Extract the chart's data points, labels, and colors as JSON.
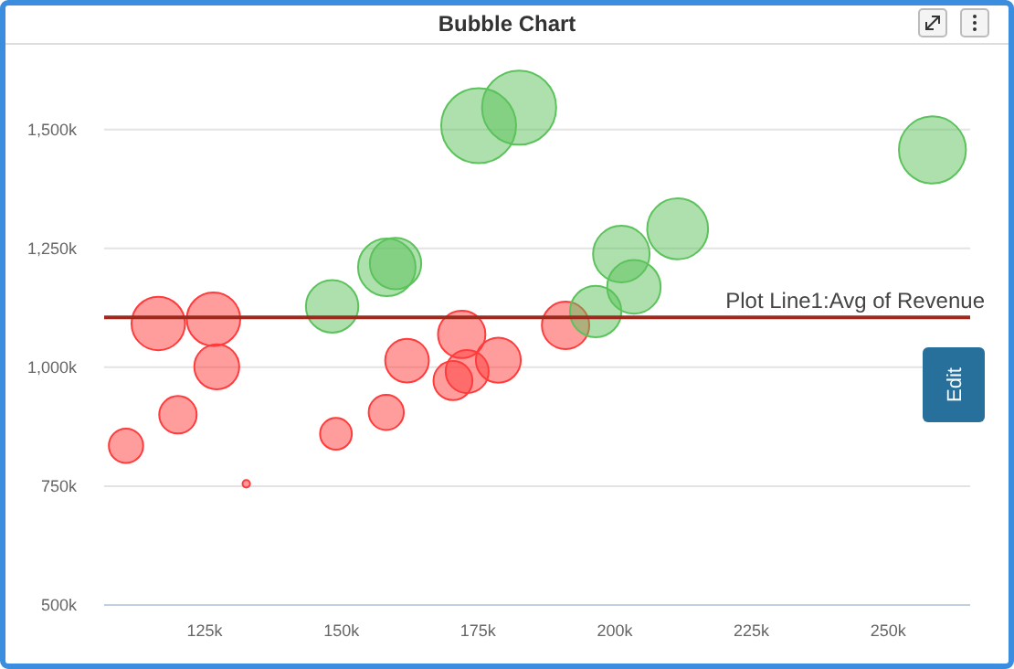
{
  "chart_data": {
    "type": "bubble",
    "title": "Bubble Chart",
    "xlim": [
      106600,
      265000
    ],
    "xticks": [
      {
        "value": 125000,
        "label": "125k"
      },
      {
        "value": 150000,
        "label": "150k"
      },
      {
        "value": 175000,
        "label": "175k"
      },
      {
        "value": 200000,
        "label": "200k"
      },
      {
        "value": 225000,
        "label": "225k"
      },
      {
        "value": 250000,
        "label": "250k"
      }
    ],
    "ylim": [
      500000,
      1680000
    ],
    "yticks": [
      {
        "value": 500000,
        "label": "500k"
      },
      {
        "value": 750000,
        "label": "750k"
      },
      {
        "value": 1000000,
        "label": "1,000k"
      },
      {
        "value": 1250000,
        "label": "1,250k"
      },
      {
        "value": 1500000,
        "label": "1,500k"
      }
    ],
    "grid": "y",
    "series": [
      {
        "color": "#ff3b3b",
        "x": [
          110600,
          120100,
          127200,
          116500,
          126600,
          132600,
          149000,
          158200,
          162000,
          170400,
          172000,
          173000,
          178700,
          191000
        ],
        "values": [
          835000,
          900000,
          1001000,
          1092000,
          1101000,
          755000,
          860000,
          905000,
          1014000,
          972000,
          1069000,
          991000,
          1015000,
          1088000
        ],
        "sizes": [
          0.21,
          0.25,
          0.36,
          0.51,
          0.51,
          0.01,
          0.18,
          0.22,
          0.34,
          0.27,
          0.4,
          0.33,
          0.36,
          0.4
        ]
      },
      {
        "color": "#5cc25c",
        "x": [
          148300,
          158300,
          159900,
          175100,
          182500,
          196500,
          201200,
          203500,
          211500,
          258100
        ],
        "values": [
          1128000,
          1210000,
          1218000,
          1508000,
          1546000,
          1117000,
          1238000,
          1169000,
          1291000,
          1457000
        ],
        "sizes": [
          0.49,
          0.59,
          0.47,
          1,
          0.98,
          0.47,
          0.57,
          0.51,
          0.66,
          0.8
        ]
      }
    ],
    "ref_lines": [
      {
        "axis": "y",
        "value": 1105000,
        "label": "Plot Line1:Avg of Revenue",
        "color": "#9e2a1e"
      }
    ],
    "annotations": [
      "Edit"
    ]
  }
}
